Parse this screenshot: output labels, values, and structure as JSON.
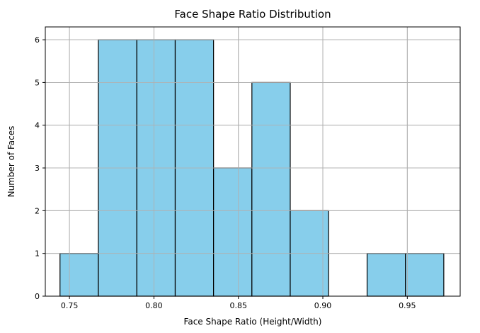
{
  "chart_data": {
    "type": "bar",
    "title": "Face Shape Ratio Distribution",
    "xlabel": "Face Shape Ratio (Height/Width)",
    "ylabel": "Number of Faces",
    "xlim": [
      0.7357,
      0.9813
    ],
    "ylim": [
      0,
      6.3
    ],
    "bin_edges": [
      0.7444,
      0.7671,
      0.7899,
      0.8126,
      0.8353,
      0.858,
      0.8807,
      0.9034,
      0.9262,
      0.9489,
      0.9716
    ],
    "values": [
      1,
      6,
      6,
      6,
      3,
      5,
      2,
      0,
      1,
      1
    ],
    "xticks": [
      0.75,
      0.8,
      0.85,
      0.9,
      0.95
    ],
    "xtick_labels": [
      "0.75",
      "0.80",
      "0.85",
      "0.90",
      "0.95"
    ],
    "yticks": [
      0,
      1,
      2,
      3,
      4,
      5,
      6
    ],
    "ytick_labels": [
      "0",
      "1",
      "2",
      "3",
      "4",
      "5",
      "6"
    ],
    "grid": true,
    "colors": {
      "bar_fill": "#87ceeb",
      "bar_edge": "#000000",
      "grid": "#b0b0b0"
    }
  }
}
